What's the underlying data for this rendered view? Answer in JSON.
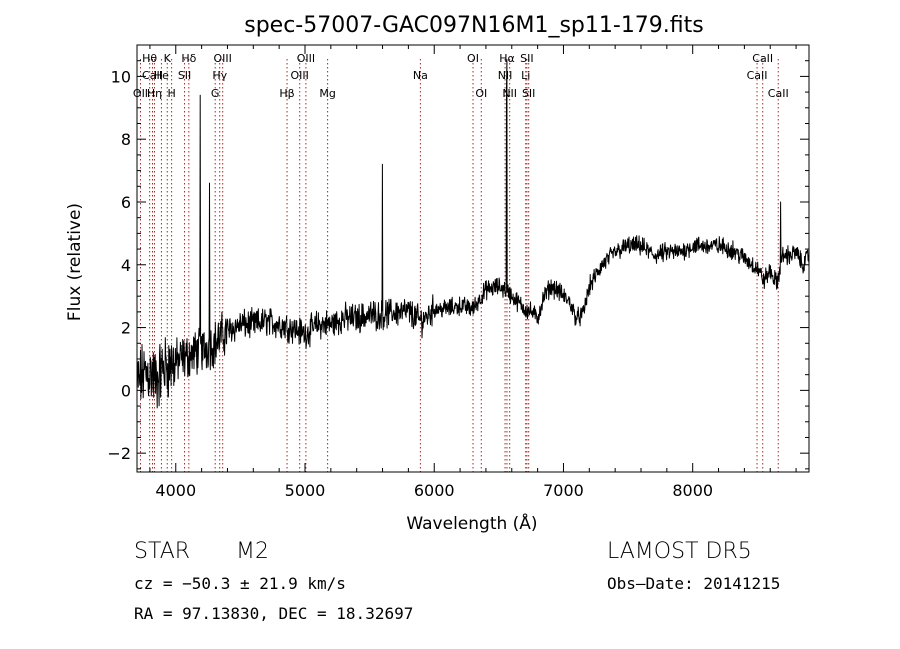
{
  "chart_data": {
    "type": "line",
    "title": "spec-57007-GAC097N16M1_sp11-179.fits",
    "xlabel": "Wavelength (Å)",
    "ylabel": "Flux (relative)",
    "xlim": [
      3700,
      8900
    ],
    "ylim": [
      -2.6,
      11.0
    ],
    "xticks": [
      4000,
      5000,
      6000,
      7000,
      8000
    ],
    "yticks": [
      -2,
      0,
      2,
      4,
      6,
      8,
      10
    ],
    "grid": false,
    "legend": "none",
    "line_color": "#000000",
    "marker_color": "#b22222",
    "spectrum_anchors": [
      [
        3700,
        0.2
      ],
      [
        3750,
        0.5
      ],
      [
        3800,
        0.6
      ],
      [
        3850,
        0.3
      ],
      [
        3900,
        0.7
      ],
      [
        3950,
        0.8
      ],
      [
        4000,
        0.9
      ],
      [
        4100,
        1.1
      ],
      [
        4200,
        1.3
      ],
      [
        4300,
        1.5
      ],
      [
        4400,
        1.9
      ],
      [
        4500,
        2.1
      ],
      [
        4600,
        2.1
      ],
      [
        4700,
        2.2
      ],
      [
        4800,
        2.1
      ],
      [
        4900,
        2.0
      ],
      [
        5000,
        1.8
      ],
      [
        5100,
        2.1
      ],
      [
        5200,
        2.1
      ],
      [
        5300,
        2.3
      ],
      [
        5400,
        2.3
      ],
      [
        5500,
        2.4
      ],
      [
        5600,
        2.4
      ],
      [
        5700,
        2.5
      ],
      [
        5800,
        2.5
      ],
      [
        5900,
        2.2
      ],
      [
        6000,
        2.6
      ],
      [
        6100,
        2.6
      ],
      [
        6200,
        2.7
      ],
      [
        6300,
        2.6
      ],
      [
        6400,
        3.2
      ],
      [
        6500,
        3.3
      ],
      [
        6560,
        3.2
      ],
      [
        6600,
        3.0
      ],
      [
        6650,
        2.8
      ],
      [
        6700,
        2.6
      ],
      [
        6750,
        2.5
      ],
      [
        6800,
        2.3
      ],
      [
        6850,
        3.0
      ],
      [
        6900,
        3.3
      ],
      [
        6950,
        3.2
      ],
      [
        7000,
        3.0
      ],
      [
        7050,
        2.8
      ],
      [
        7100,
        2.3
      ],
      [
        7150,
        2.4
      ],
      [
        7200,
        3.3
      ],
      [
        7300,
        4.0
      ],
      [
        7400,
        4.4
      ],
      [
        7500,
        4.6
      ],
      [
        7600,
        4.6
      ],
      [
        7700,
        4.3
      ],
      [
        7800,
        4.4
      ],
      [
        7900,
        4.4
      ],
      [
        8000,
        4.6
      ],
      [
        8100,
        4.6
      ],
      [
        8200,
        4.6
      ],
      [
        8300,
        4.5
      ],
      [
        8400,
        4.2
      ],
      [
        8500,
        3.9
      ],
      [
        8550,
        3.5
      ],
      [
        8600,
        3.8
      ],
      [
        8650,
        3.4
      ],
      [
        8700,
        4.3
      ],
      [
        8750,
        4.3
      ],
      [
        8800,
        4.4
      ],
      [
        8850,
        4.0
      ],
      [
        8900,
        4.3
      ]
    ],
    "emission_spikes": [
      [
        4190,
        9.4
      ],
      [
        4260,
        6.6
      ],
      [
        5600,
        7.2
      ],
      [
        6563,
        10.5
      ],
      [
        6560,
        9.6
      ],
      [
        8680,
        6.0
      ]
    ],
    "lines": [
      {
        "label": "Hθ",
        "wave": 3798,
        "row": 0
      },
      {
        "label": "CaII",
        "wave": 3820,
        "row": 1
      },
      {
        "label": "OII",
        "wave": 3727,
        "row": 2
      },
      {
        "label": "Hη",
        "wave": 3835,
        "row": 2
      },
      {
        "label": "K",
        "wave": 3934,
        "row": 0
      },
      {
        "label": "He",
        "wave": 3889,
        "row": 1
      },
      {
        "label": "H",
        "wave": 3968,
        "row": 2
      },
      {
        "label": "Hδ",
        "wave": 4101,
        "row": 0
      },
      {
        "label": "SII",
        "wave": 4068,
        "row": 1
      },
      {
        "label": "OIII",
        "wave": 4363,
        "row": 0
      },
      {
        "label": "Hγ",
        "wave": 4340,
        "row": 1
      },
      {
        "label": "G",
        "wave": 4305,
        "row": 2
      },
      {
        "label": "Hβ",
        "wave": 4861,
        "row": 2
      },
      {
        "label": "OIII",
        "wave": 5007,
        "row": 0
      },
      {
        "label": "OIII",
        "wave": 4959,
        "row": 1
      },
      {
        "label": "Mg",
        "wave": 5175,
        "row": 2
      },
      {
        "label": "Na",
        "wave": 5893,
        "row": 1
      },
      {
        "label": "OI",
        "wave": 6300,
        "row": 0
      },
      {
        "label": "OI",
        "wave": 6364,
        "row": 2
      },
      {
        "label": "Hα",
        "wave": 6563,
        "row": 0
      },
      {
        "label": "SII",
        "wave": 6717,
        "row": 0
      },
      {
        "label": "NII",
        "wave": 6548,
        "row": 1
      },
      {
        "label": "Li",
        "wave": 6708,
        "row": 1
      },
      {
        "label": "NII",
        "wave": 6584,
        "row": 2
      },
      {
        "label": "SII",
        "wave": 6731,
        "row": 2
      },
      {
        "label": "CaII",
        "wave": 8542,
        "row": 0
      },
      {
        "label": "CaII",
        "wave": 8498,
        "row": 1
      },
      {
        "label": "CaII",
        "wave": 8662,
        "row": 2
      }
    ]
  },
  "info": {
    "object_class": "STAR",
    "subclass": "M2",
    "survey": "LAMOST DR5",
    "cz": "cz = −50.3 ± 21.9 km/s",
    "obs_date": "Obs–Date: 20141215",
    "coords": "RA =  97.13830, DEC =  18.32697"
  }
}
